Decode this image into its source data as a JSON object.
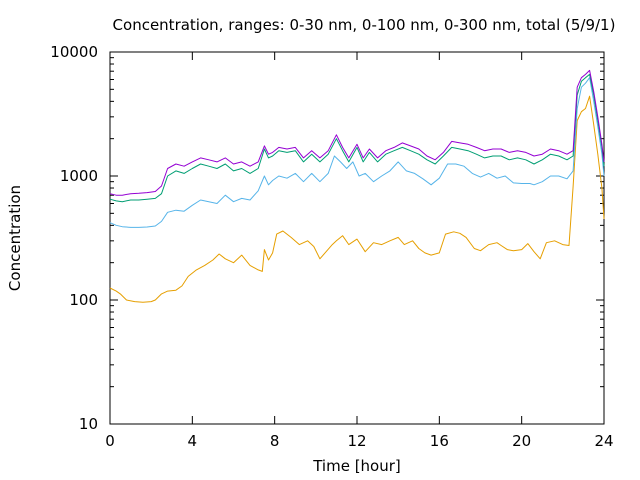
{
  "chart_data": {
    "type": "line",
    "title": "Concentration, ranges: 0-30 nm, 0-100 nm, 0-300 nm, total (5/9/1)",
    "xlabel": "Time [hour]",
    "ylabel": "Concentration",
    "xlim": [
      0,
      24
    ],
    "ylim": [
      10,
      10000
    ],
    "yscale": "log",
    "xticks": [
      0,
      4,
      8,
      12,
      16,
      20,
      24
    ],
    "xtick_labels": [
      "0",
      "4",
      "8",
      "12",
      "16",
      "20",
      "24"
    ],
    "yticks": [
      10,
      100,
      1000,
      10000
    ],
    "ytick_labels": [
      "10",
      "100",
      "1000",
      "10000"
    ],
    "grid": false,
    "legend": "none",
    "series": [
      {
        "color": "#e69f00",
        "points": [
          [
            0,
            125
          ],
          [
            0.3,
            118
          ],
          [
            0.5,
            112
          ],
          [
            0.8,
            100
          ],
          [
            1.2,
            97
          ],
          [
            1.6,
            96
          ],
          [
            2.0,
            97
          ],
          [
            2.2,
            100
          ],
          [
            2.5,
            112
          ],
          [
            2.8,
            118
          ],
          [
            3.2,
            120
          ],
          [
            3.5,
            130
          ],
          [
            3.8,
            155
          ],
          [
            4.2,
            175
          ],
          [
            4.6,
            190
          ],
          [
            5.0,
            210
          ],
          [
            5.3,
            235
          ],
          [
            5.6,
            215
          ],
          [
            6.0,
            200
          ],
          [
            6.4,
            230
          ],
          [
            6.8,
            190
          ],
          [
            7.2,
            175
          ],
          [
            7.4,
            170
          ],
          [
            7.5,
            255
          ],
          [
            7.7,
            210
          ],
          [
            7.9,
            240
          ],
          [
            8.1,
            340
          ],
          [
            8.4,
            360
          ],
          [
            8.8,
            320
          ],
          [
            9.2,
            280
          ],
          [
            9.6,
            300
          ],
          [
            9.9,
            270
          ],
          [
            10.2,
            215
          ],
          [
            10.5,
            245
          ],
          [
            10.8,
            280
          ],
          [
            11.0,
            300
          ],
          [
            11.3,
            330
          ],
          [
            11.6,
            280
          ],
          [
            12.0,
            310
          ],
          [
            12.4,
            245
          ],
          [
            12.8,
            290
          ],
          [
            13.2,
            280
          ],
          [
            13.6,
            300
          ],
          [
            14.0,
            320
          ],
          [
            14.3,
            280
          ],
          [
            14.7,
            300
          ],
          [
            15.0,
            260
          ],
          [
            15.3,
            240
          ],
          [
            15.6,
            230
          ],
          [
            16.0,
            240
          ],
          [
            16.3,
            340
          ],
          [
            16.7,
            355
          ],
          [
            17.0,
            345
          ],
          [
            17.3,
            320
          ],
          [
            17.7,
            260
          ],
          [
            18.0,
            250
          ],
          [
            18.4,
            280
          ],
          [
            18.8,
            290
          ],
          [
            19.0,
            275
          ],
          [
            19.3,
            255
          ],
          [
            19.6,
            250
          ],
          [
            20.0,
            255
          ],
          [
            20.3,
            285
          ],
          [
            20.6,
            245
          ],
          [
            20.9,
            215
          ],
          [
            21.2,
            290
          ],
          [
            21.6,
            300
          ],
          [
            22.0,
            280
          ],
          [
            22.3,
            275
          ],
          [
            22.5,
            820
          ],
          [
            22.7,
            2800
          ],
          [
            22.9,
            3300
          ],
          [
            23.1,
            3500
          ],
          [
            23.3,
            4400
          ],
          [
            23.5,
            2600
          ],
          [
            23.7,
            1500
          ],
          [
            23.9,
            800
          ],
          [
            24.0,
            450
          ]
        ]
      },
      {
        "color": "#56b4e9",
        "points": [
          [
            0,
            420
          ],
          [
            0.3,
            400
          ],
          [
            0.6,
            390
          ],
          [
            1.0,
            385
          ],
          [
            1.4,
            385
          ],
          [
            1.8,
            388
          ],
          [
            2.2,
            395
          ],
          [
            2.5,
            430
          ],
          [
            2.8,
            510
          ],
          [
            3.2,
            530
          ],
          [
            3.6,
            520
          ],
          [
            4.0,
            580
          ],
          [
            4.4,
            640
          ],
          [
            4.8,
            620
          ],
          [
            5.2,
            600
          ],
          [
            5.6,
            700
          ],
          [
            6.0,
            620
          ],
          [
            6.4,
            660
          ],
          [
            6.8,
            640
          ],
          [
            7.2,
            760
          ],
          [
            7.5,
            1000
          ],
          [
            7.7,
            850
          ],
          [
            7.9,
            920
          ],
          [
            8.2,
            1000
          ],
          [
            8.6,
            960
          ],
          [
            9.0,
            1050
          ],
          [
            9.4,
            900
          ],
          [
            9.8,
            1050
          ],
          [
            10.2,
            900
          ],
          [
            10.6,
            1050
          ],
          [
            10.9,
            1450
          ],
          [
            11.2,
            1300
          ],
          [
            11.5,
            1150
          ],
          [
            11.8,
            1300
          ],
          [
            12.1,
            1000
          ],
          [
            12.4,
            1050
          ],
          [
            12.8,
            900
          ],
          [
            13.2,
            1000
          ],
          [
            13.6,
            1100
          ],
          [
            14.0,
            1300
          ],
          [
            14.4,
            1100
          ],
          [
            14.8,
            1050
          ],
          [
            15.2,
            950
          ],
          [
            15.6,
            850
          ],
          [
            16.0,
            960
          ],
          [
            16.4,
            1250
          ],
          [
            16.8,
            1250
          ],
          [
            17.2,
            1200
          ],
          [
            17.6,
            1050
          ],
          [
            18.0,
            980
          ],
          [
            18.4,
            1050
          ],
          [
            18.8,
            960
          ],
          [
            19.2,
            1000
          ],
          [
            19.6,
            880
          ],
          [
            20.0,
            870
          ],
          [
            20.4,
            870
          ],
          [
            20.6,
            850
          ],
          [
            21.0,
            900
          ],
          [
            21.4,
            1000
          ],
          [
            21.8,
            1000
          ],
          [
            22.2,
            950
          ],
          [
            22.5,
            1100
          ],
          [
            22.7,
            3500
          ],
          [
            22.9,
            5200
          ],
          [
            23.1,
            5600
          ],
          [
            23.3,
            6200
          ],
          [
            23.5,
            4000
          ],
          [
            23.7,
            2500
          ],
          [
            23.9,
            1500
          ],
          [
            24.0,
            1000
          ]
        ]
      },
      {
        "color": "#009e73",
        "points": [
          [
            0,
            650
          ],
          [
            0.3,
            630
          ],
          [
            0.6,
            620
          ],
          [
            1.0,
            640
          ],
          [
            1.4,
            640
          ],
          [
            1.8,
            650
          ],
          [
            2.2,
            660
          ],
          [
            2.5,
            720
          ],
          [
            2.8,
            1000
          ],
          [
            3.2,
            1100
          ],
          [
            3.6,
            1050
          ],
          [
            4.0,
            1150
          ],
          [
            4.4,
            1250
          ],
          [
            4.8,
            1200
          ],
          [
            5.2,
            1150
          ],
          [
            5.6,
            1250
          ],
          [
            6.0,
            1100
          ],
          [
            6.4,
            1150
          ],
          [
            6.8,
            1050
          ],
          [
            7.2,
            1150
          ],
          [
            7.5,
            1650
          ],
          [
            7.7,
            1400
          ],
          [
            7.9,
            1450
          ],
          [
            8.2,
            1600
          ],
          [
            8.6,
            1550
          ],
          [
            9.0,
            1600
          ],
          [
            9.4,
            1300
          ],
          [
            9.8,
            1500
          ],
          [
            10.2,
            1300
          ],
          [
            10.6,
            1500
          ],
          [
            11.0,
            2000
          ],
          [
            11.3,
            1600
          ],
          [
            11.6,
            1300
          ],
          [
            12.0,
            1700
          ],
          [
            12.3,
            1300
          ],
          [
            12.6,
            1550
          ],
          [
            13.0,
            1300
          ],
          [
            13.4,
            1500
          ],
          [
            13.8,
            1600
          ],
          [
            14.2,
            1700
          ],
          [
            14.6,
            1600
          ],
          [
            15.0,
            1500
          ],
          [
            15.4,
            1350
          ],
          [
            15.8,
            1250
          ],
          [
            16.2,
            1450
          ],
          [
            16.6,
            1700
          ],
          [
            17.0,
            1650
          ],
          [
            17.4,
            1600
          ],
          [
            17.8,
            1500
          ],
          [
            18.2,
            1400
          ],
          [
            18.6,
            1450
          ],
          [
            19.0,
            1450
          ],
          [
            19.4,
            1350
          ],
          [
            19.8,
            1400
          ],
          [
            20.2,
            1350
          ],
          [
            20.6,
            1250
          ],
          [
            21.0,
            1350
          ],
          [
            21.4,
            1500
          ],
          [
            21.8,
            1450
          ],
          [
            22.2,
            1350
          ],
          [
            22.5,
            1450
          ],
          [
            22.7,
            4500
          ],
          [
            22.9,
            5800
          ],
          [
            23.1,
            6200
          ],
          [
            23.3,
            6600
          ],
          [
            23.5,
            4500
          ],
          [
            23.7,
            2800
          ],
          [
            23.9,
            1700
          ],
          [
            24.0,
            1200
          ]
        ]
      },
      {
        "color": "#9400d3",
        "points": [
          [
            0,
            720
          ],
          [
            0.3,
            700
          ],
          [
            0.6,
            700
          ],
          [
            1.0,
            720
          ],
          [
            1.4,
            725
          ],
          [
            1.8,
            735
          ],
          [
            2.2,
            750
          ],
          [
            2.5,
            830
          ],
          [
            2.8,
            1150
          ],
          [
            3.2,
            1250
          ],
          [
            3.6,
            1200
          ],
          [
            4.0,
            1300
          ],
          [
            4.4,
            1400
          ],
          [
            4.8,
            1350
          ],
          [
            5.2,
            1300
          ],
          [
            5.6,
            1400
          ],
          [
            6.0,
            1250
          ],
          [
            6.4,
            1300
          ],
          [
            6.8,
            1200
          ],
          [
            7.2,
            1300
          ],
          [
            7.5,
            1750
          ],
          [
            7.7,
            1500
          ],
          [
            7.9,
            1550
          ],
          [
            8.2,
            1700
          ],
          [
            8.6,
            1650
          ],
          [
            9.0,
            1700
          ],
          [
            9.4,
            1400
          ],
          [
            9.8,
            1600
          ],
          [
            10.2,
            1400
          ],
          [
            10.6,
            1600
          ],
          [
            11.0,
            2150
          ],
          [
            11.3,
            1700
          ],
          [
            11.6,
            1400
          ],
          [
            12.0,
            1800
          ],
          [
            12.3,
            1400
          ],
          [
            12.6,
            1650
          ],
          [
            13.0,
            1400
          ],
          [
            13.4,
            1600
          ],
          [
            13.8,
            1700
          ],
          [
            14.2,
            1850
          ],
          [
            14.6,
            1750
          ],
          [
            15.0,
            1650
          ],
          [
            15.4,
            1450
          ],
          [
            15.8,
            1350
          ],
          [
            16.2,
            1550
          ],
          [
            16.6,
            1900
          ],
          [
            17.0,
            1850
          ],
          [
            17.4,
            1800
          ],
          [
            17.8,
            1700
          ],
          [
            18.2,
            1600
          ],
          [
            18.6,
            1650
          ],
          [
            19.0,
            1650
          ],
          [
            19.4,
            1550
          ],
          [
            19.8,
            1600
          ],
          [
            20.2,
            1550
          ],
          [
            20.6,
            1450
          ],
          [
            21.0,
            1500
          ],
          [
            21.4,
            1650
          ],
          [
            21.8,
            1600
          ],
          [
            22.2,
            1500
          ],
          [
            22.5,
            1600
          ],
          [
            22.7,
            5200
          ],
          [
            22.9,
            6200
          ],
          [
            23.1,
            6600
          ],
          [
            23.3,
            7100
          ],
          [
            23.5,
            4800
          ],
          [
            23.7,
            3000
          ],
          [
            23.9,
            1800
          ],
          [
            24.0,
            1300
          ]
        ]
      }
    ]
  }
}
